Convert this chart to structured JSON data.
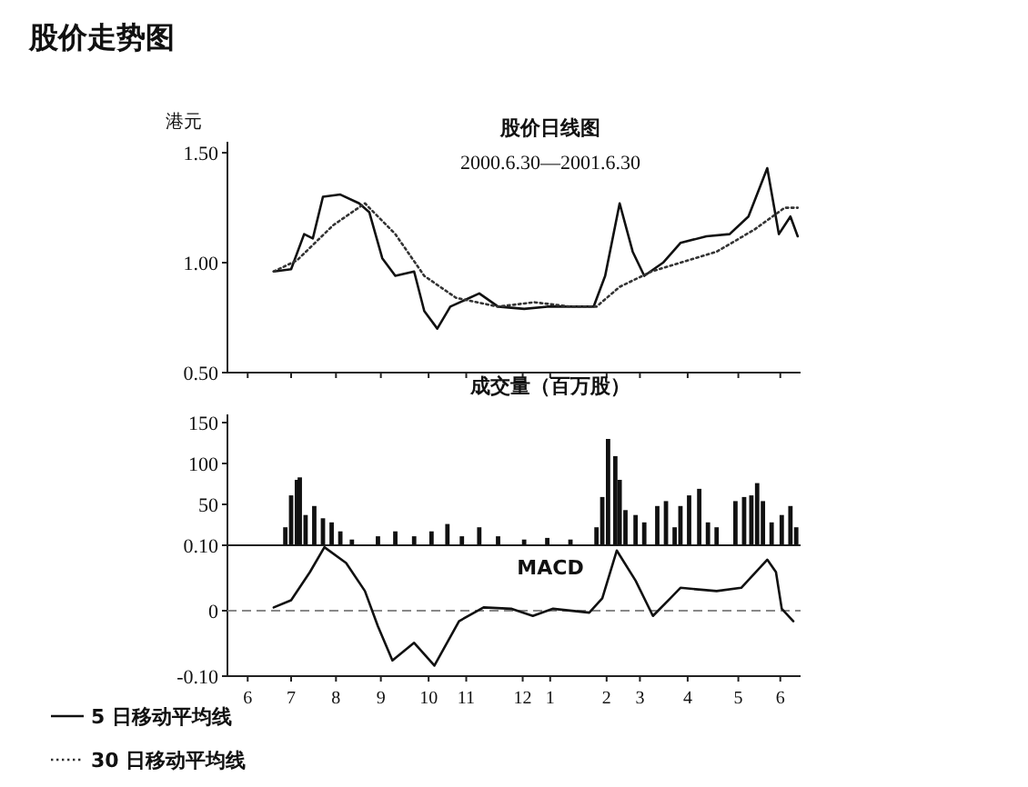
{
  "chart_data": [
    {
      "type": "line",
      "title": "股价日线图",
      "subtitle": "2000.6.30—2001.6.30",
      "ylabel": "港元",
      "annotations": [
        "股价走势图"
      ],
      "xlim": [
        "2000-06-01",
        "2001-07-02"
      ],
      "xticks": [
        {
          "value": "2000-06-15",
          "label": null
        },
        {
          "value": "2000-07-15",
          "label": null
        },
        {
          "value": "2000-08-15",
          "label": null
        },
        {
          "value": "2000-09-15",
          "label": null
        },
        {
          "value": "2000-10-18",
          "label": null
        },
        {
          "value": "2000-11-13",
          "label": null
        },
        {
          "value": "2000-12-22",
          "label": null
        },
        {
          "value": "2001-01-10",
          "label": null
        },
        {
          "value": "2001-02-18",
          "label": null
        },
        {
          "value": "2001-03-13",
          "label": null
        },
        {
          "value": "2001-04-15",
          "label": null
        },
        {
          "value": "2001-05-20",
          "label": null
        },
        {
          "value": "2001-06-18",
          "label": null
        }
      ],
      "ylim": [
        0.5,
        1.55
      ],
      "yticks": [
        {
          "value": 0.5,
          "label": "0.50"
        },
        {
          "value": 1.0,
          "label": "1.00"
        },
        {
          "value": 1.5,
          "label": "1.50"
        }
      ],
      "tick_labels": "y",
      "legend": "bottom left",
      "grid": false,
      "series": [
        {
          "name": "5 日移动平均线",
          "color": "#111111",
          "line_style": "solid",
          "x": [
            "2000-07-03",
            "2000-07-15",
            "2000-07-24",
            "2000-07-30",
            "2000-08-06",
            "2000-08-18",
            "2000-08-31",
            "2000-09-07",
            "2000-09-16",
            "2000-09-25",
            "2000-10-08",
            "2000-10-15",
            "2000-10-24",
            "2000-11-02",
            "2000-11-22",
            "2000-12-05",
            "2000-12-23",
            "2001-01-08",
            "2001-01-24",
            "2001-02-09",
            "2001-02-17",
            "2001-02-27",
            "2001-03-08",
            "2001-03-16",
            "2001-03-29",
            "2001-04-10",
            "2001-04-28",
            "2001-05-14",
            "2001-05-27",
            "2001-06-09",
            "2001-06-17",
            "2001-06-25",
            "2001-06-30"
          ],
          "values": [
            0.96,
            0.97,
            1.13,
            1.11,
            1.3,
            1.31,
            1.27,
            1.23,
            1.02,
            0.94,
            0.96,
            0.78,
            0.7,
            0.8,
            0.86,
            0.8,
            0.79,
            0.8,
            0.8,
            0.8,
            0.94,
            1.27,
            1.05,
            0.94,
            1.0,
            1.09,
            1.12,
            1.13,
            1.21,
            1.43,
            1.13,
            1.21,
            1.12
          ]
        },
        {
          "name": "30 日移动平均线",
          "color": "#333333",
          "line_style": "dotted",
          "x": [
            "2000-07-03",
            "2000-07-19",
            "2000-08-13",
            "2000-09-04",
            "2000-09-25",
            "2000-10-15",
            "2000-11-06",
            "2000-12-05",
            "2000-12-30",
            "2001-01-24",
            "2001-02-11",
            "2001-02-27",
            "2001-03-21",
            "2001-04-10",
            "2001-05-05",
            "2001-05-31",
            "2001-06-21",
            "2001-06-30"
          ],
          "values": [
            0.96,
            1.01,
            1.17,
            1.27,
            1.13,
            0.94,
            0.84,
            0.8,
            0.82,
            0.8,
            0.8,
            0.89,
            0.96,
            1.0,
            1.05,
            1.15,
            1.25,
            1.25
          ]
        }
      ]
    },
    {
      "type": "bar",
      "title": "成交量（百万股）",
      "xlim": [
        "2000-06-01",
        "2001-07-02"
      ],
      "ylim": [
        0,
        160
      ],
      "yticks": [
        50,
        100,
        150
      ],
      "tick_labels": "y",
      "grid": false,
      "series": [
        {
          "color": "#111111",
          "x": [
            "2000-07-11",
            "2000-07-15",
            "2000-07-19",
            "2000-07-21",
            "2000-07-25",
            "2000-07-31",
            "2000-08-06",
            "2000-08-12",
            "2000-08-18",
            "2000-08-26",
            "2000-09-13",
            "2000-09-25",
            "2000-10-08",
            "2000-10-20",
            "2000-10-31",
            "2000-11-10",
            "2000-11-22",
            "2000-12-05",
            "2000-12-23",
            "2001-01-08",
            "2001-01-24",
            "2001-02-11",
            "2001-02-15",
            "2001-02-19",
            "2001-02-24",
            "2001-02-27",
            "2001-03-03",
            "2001-03-10",
            "2001-03-16",
            "2001-03-25",
            "2001-03-31",
            "2001-04-06",
            "2001-04-10",
            "2001-04-16",
            "2001-04-23",
            "2001-04-29",
            "2001-05-05",
            "2001-05-18",
            "2001-05-24",
            "2001-05-29",
            "2001-06-02",
            "2001-06-06",
            "2001-06-12",
            "2001-06-19",
            "2001-06-25",
            "2001-06-29"
          ],
          "values": [
            22,
            61,
            80,
            83,
            37,
            48,
            33,
            28,
            17,
            7,
            11,
            17,
            11,
            17,
            26,
            11,
            22,
            11,
            7,
            9,
            7,
            22,
            59,
            130,
            109,
            80,
            43,
            37,
            28,
            48,
            54,
            22,
            48,
            61,
            69,
            28,
            22,
            54,
            59,
            61,
            76,
            54,
            28,
            37,
            48,
            22
          ]
        }
      ]
    },
    {
      "type": "line",
      "title": "MACD",
      "xlim": [
        "2000-06-01",
        "2001-07-02"
      ],
      "xticks": [
        {
          "value": "2000-06-15",
          "label": "6"
        },
        {
          "value": "2000-07-15",
          "label": "7"
        },
        {
          "value": "2000-08-15",
          "label": "8"
        },
        {
          "value": "2000-09-15",
          "label": "9"
        },
        {
          "value": "2000-10-18",
          "label": "10"
        },
        {
          "value": "2000-11-13",
          "label": "11"
        },
        {
          "value": "2000-12-22",
          "label": "12"
        },
        {
          "value": "2001-01-10",
          "label": "1"
        },
        {
          "value": "2001-02-18",
          "label": "2"
        },
        {
          "value": "2001-03-13",
          "label": "3"
        },
        {
          "value": "2001-04-15",
          "label": "4"
        },
        {
          "value": "2001-05-20",
          "label": "5"
        },
        {
          "value": "2001-06-18",
          "label": "6"
        }
      ],
      "ylim": [
        -0.1,
        0.1
      ],
      "yticks": [
        {
          "value": -0.1,
          "label": "-0.10"
        },
        0,
        {
          "value": 0.1,
          "label": "0.10"
        }
      ],
      "grid": false,
      "ref_lines": [
        {
          "axis": "y",
          "value": 0,
          "color": "#888888",
          "line_style": "dashed"
        }
      ],
      "series": [
        {
          "color": "#111111",
          "line_style": "solid",
          "x": [
            "2000-07-03",
            "2000-07-15",
            "2000-07-28",
            "2000-08-07",
            "2000-08-22",
            "2000-09-04",
            "2000-09-13",
            "2000-09-23",
            "2000-10-08",
            "2000-10-22",
            "2000-11-08",
            "2000-11-25",
            "2000-12-14",
            "2000-12-29",
            "2001-01-12",
            "2001-02-06",
            "2001-02-15",
            "2001-02-25",
            "2001-03-10",
            "2001-03-22",
            "2001-04-03",
            "2001-04-10",
            "2001-05-05",
            "2001-05-22",
            "2001-06-09",
            "2001-06-15",
            "2001-06-19",
            "2001-06-27"
          ],
          "values": [
            0.005,
            0.016,
            0.059,
            0.097,
            0.073,
            0.03,
            -0.024,
            -0.076,
            -0.049,
            -0.084,
            -0.016,
            0.005,
            0.003,
            -0.008,
            0.003,
            -0.003,
            0.019,
            0.092,
            0.046,
            -0.008,
            0.019,
            0.035,
            0.03,
            0.035,
            0.078,
            0.059,
            0.003,
            -0.016
          ]
        }
      ]
    }
  ]
}
